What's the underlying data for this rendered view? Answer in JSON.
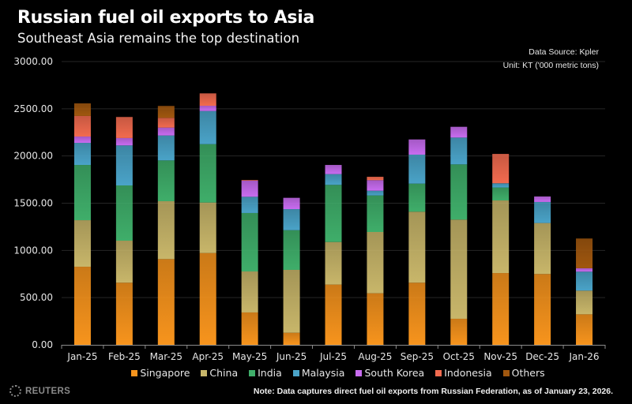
{
  "header": {
    "title": "Russian fuel oil exports to Asia",
    "subtitle": "Southeast Asia remains the top destination",
    "source": "Data Source: Kpler",
    "unit": "Unit: KT ('000 metric tons)"
  },
  "footer": {
    "brand": "REUTERS",
    "note": "Note: Data captures direct fuel oil exports from Russian Federation, as of January 23, 2026."
  },
  "chart_data": {
    "type": "bar",
    "stacked": true,
    "title": "Russian fuel oil exports to Asia",
    "subtitle": "Southeast Asia remains the top destination",
    "xlabel": "",
    "ylabel": "KT ('000 metric tons)",
    "ylim": [
      0,
      3000
    ],
    "yticks": [
      0,
      500,
      1000,
      1500,
      2000,
      2500,
      3000
    ],
    "ytick_labels": [
      "0.00",
      "500.00",
      "1000.00",
      "1500.00",
      "2000.00",
      "2500.00",
      "3000.00"
    ],
    "grid": true,
    "legend_position": "bottom",
    "categories": [
      "Jan-25",
      "Feb-25",
      "Mar-25",
      "Apr-25",
      "May-25",
      "Jun-25",
      "Jul-25",
      "Aug-25",
      "Sep-25",
      "Oct-25",
      "Nov-25",
      "Dec-25",
      "Jan-26"
    ],
    "series": [
      {
        "name": "Singapore",
        "color": "#f7941d",
        "values": [
          827,
          658,
          908,
          972,
          343,
          128,
          638,
          546,
          658,
          276,
          760,
          750,
          323
        ]
      },
      {
        "name": "China",
        "color": "#c8b66a",
        "values": [
          493,
          445,
          613,
          535,
          434,
          666,
          451,
          649,
          752,
          1050,
          769,
          540,
          251
        ]
      },
      {
        "name": "India",
        "color": "#3fae6a",
        "values": [
          585,
          585,
          432,
          618,
          619,
          420,
          605,
          387,
          297,
          585,
          137,
          0,
          0
        ]
      },
      {
        "name": "Malaysia",
        "color": "#4aa3c8",
        "values": [
          234,
          424,
          264,
          351,
          172,
          223,
          114,
          50,
          307,
          284,
          45,
          223,
          201
        ]
      },
      {
        "name": "South Korea",
        "color": "#c86cf0",
        "values": [
          67,
          78,
          84,
          56,
          170,
          120,
          97,
          112,
          161,
          114,
          0,
          58,
          36
        ]
      },
      {
        "name": "Indonesia",
        "color": "#f26b4f",
        "values": [
          218,
          223,
          103,
          131,
          7,
          0,
          0,
          36,
          0,
          0,
          311,
          0,
          0
        ]
      },
      {
        "name": "Others",
        "color": "#a0570f",
        "values": [
          133,
          0,
          126,
          0,
          0,
          0,
          0,
          0,
          0,
          0,
          0,
          0,
          315
        ]
      }
    ]
  }
}
